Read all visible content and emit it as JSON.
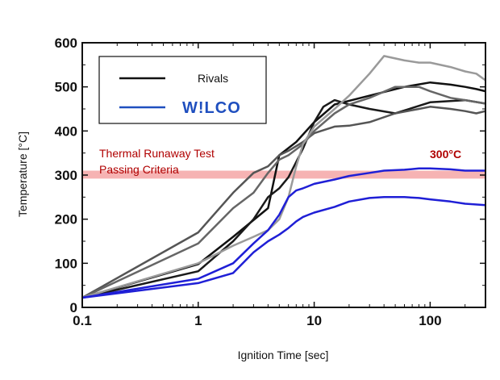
{
  "chart_data": {
    "type": "line",
    "title": "",
    "xlabel": "Ignition Time [sec]",
    "ylabel": "Temperature [°C]",
    "xscale": "log",
    "xlim": [
      0.1,
      300
    ],
    "ylim": [
      0,
      600
    ],
    "x_ticks": [
      0.1,
      1,
      10,
      100
    ],
    "x_tick_labels": [
      "0.1",
      "1",
      "10",
      "100"
    ],
    "y_ticks": [
      0,
      100,
      200,
      300,
      400,
      500,
      600
    ],
    "y_tick_labels": [
      "0",
      "100",
      "200",
      "300",
      "400",
      "500",
      "600"
    ],
    "grid": false,
    "legend": {
      "placement": "top-left",
      "entries": [
        {
          "label": "Rivals",
          "color": "#111111",
          "kind": "text"
        },
        {
          "label": "W!LCO",
          "color": "#1f4fbf",
          "kind": "brand"
        }
      ]
    },
    "threshold_band": {
      "y_min": 292,
      "y_max": 310,
      "color": "#f6b3b3",
      "label_lines": [
        "Thermal Runaway Test",
        "Passing Criteria"
      ],
      "value_label": "300°C",
      "label_color": "#b00000"
    },
    "series": [
      {
        "group": "rival",
        "color": "#111111",
        "x": [
          0.1,
          1,
          2,
          4,
          5,
          7,
          10,
          15,
          30,
          60,
          100,
          150,
          200,
          250,
          300
        ],
        "y": [
          22,
          98,
          160,
          225,
          345,
          375,
          420,
          460,
          480,
          500,
          510,
          505,
          500,
          495,
          490
        ]
      },
      {
        "group": "rival",
        "color": "#1a1a1a",
        "x": [
          0.1,
          1,
          2,
          3,
          4,
          5,
          6,
          8,
          10,
          12,
          15,
          20,
          30,
          50,
          100,
          200,
          300
        ],
        "y": [
          22,
          82,
          150,
          200,
          250,
          270,
          295,
          360,
          420,
          455,
          470,
          460,
          450,
          440,
          465,
          470,
          462
        ]
      },
      {
        "group": "rival",
        "color": "#555555",
        "x": [
          0.1,
          1,
          2,
          3,
          4,
          5,
          6,
          8,
          10,
          15,
          20,
          30,
          50,
          80,
          100,
          150,
          200,
          250,
          300
        ],
        "y": [
          22,
          170,
          260,
          305,
          320,
          345,
          355,
          375,
          395,
          410,
          412,
          420,
          440,
          450,
          455,
          450,
          445,
          440,
          445
        ]
      },
      {
        "group": "rival",
        "color": "#666666",
        "x": [
          0.1,
          1,
          2,
          3,
          4,
          5,
          6,
          8,
          10,
          15,
          20,
          30,
          50,
          80,
          100,
          150,
          200,
          300
        ],
        "y": [
          22,
          145,
          225,
          260,
          305,
          335,
          345,
          370,
          400,
          440,
          460,
          475,
          500,
          500,
          490,
          475,
          470,
          462
        ]
      },
      {
        "group": "rival",
        "color": "#9a9a9a",
        "x": [
          0.1,
          1,
          2,
          3,
          4,
          5,
          6,
          7,
          8,
          10,
          15,
          20,
          30,
          40,
          60,
          80,
          100,
          150,
          200,
          250,
          300
        ],
        "y": [
          22,
          100,
          140,
          160,
          175,
          200,
          250,
          320,
          370,
          410,
          450,
          480,
          530,
          570,
          560,
          555,
          555,
          545,
          535,
          530,
          515
        ]
      },
      {
        "group": "wilco",
        "color": "#1f1fd6",
        "x": [
          0.1,
          1,
          2,
          3,
          4,
          5,
          6,
          7,
          8,
          10,
          15,
          20,
          30,
          40,
          60,
          80,
          100,
          150,
          200,
          300
        ],
        "y": [
          22,
          65,
          100,
          145,
          175,
          210,
          250,
          265,
          270,
          280,
          290,
          298,
          305,
          310,
          312,
          315,
          315,
          313,
          310,
          310
        ]
      },
      {
        "group": "wilco",
        "color": "#1f1fd6",
        "x": [
          0.1,
          1,
          2,
          3,
          4,
          5,
          6,
          7,
          8,
          10,
          15,
          20,
          30,
          40,
          60,
          80,
          100,
          150,
          200,
          300
        ],
        "y": [
          22,
          55,
          78,
          125,
          150,
          165,
          180,
          195,
          205,
          215,
          228,
          240,
          248,
          250,
          250,
          248,
          245,
          240,
          235,
          232
        ]
      }
    ]
  }
}
